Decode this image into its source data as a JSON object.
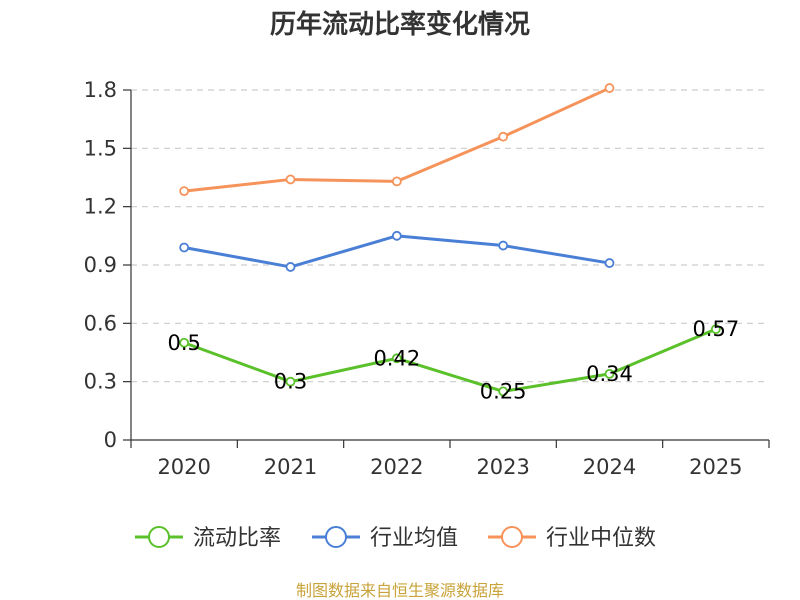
{
  "chart_data": {
    "type": "line",
    "title": "历年流动比率变化情况",
    "categories": [
      "2020",
      "2021",
      "2022",
      "2023",
      "2024",
      "2025"
    ],
    "ylim": [
      0,
      1.8
    ],
    "yticks": [
      "0",
      "0.3",
      "0.6",
      "0.9",
      "1.2",
      "1.5",
      "1.8"
    ],
    "grid": true,
    "legend_position": "bottom",
    "series": [
      {
        "name": "流动比率",
        "color": "#5ac12a",
        "values": [
          0.5,
          0.3,
          0.42,
          0.25,
          0.34,
          0.57
        ],
        "labels": [
          "0.5",
          "0.3",
          "0.42",
          "0.25",
          "0.34",
          "0.57"
        ]
      },
      {
        "name": "行业均值",
        "color": "#4a7fd6",
        "values": [
          0.99,
          0.89,
          1.05,
          1.0,
          0.91,
          null
        ]
      },
      {
        "name": "行业中位数",
        "color": "#f5935a",
        "values": [
          1.28,
          1.34,
          1.33,
          1.56,
          1.81,
          null
        ]
      }
    ]
  },
  "source_text": "制图数据来自恒生聚源数据库",
  "colors": {
    "source": "#c8a33a",
    "axis": "#333333",
    "grid": "#cccccc"
  }
}
